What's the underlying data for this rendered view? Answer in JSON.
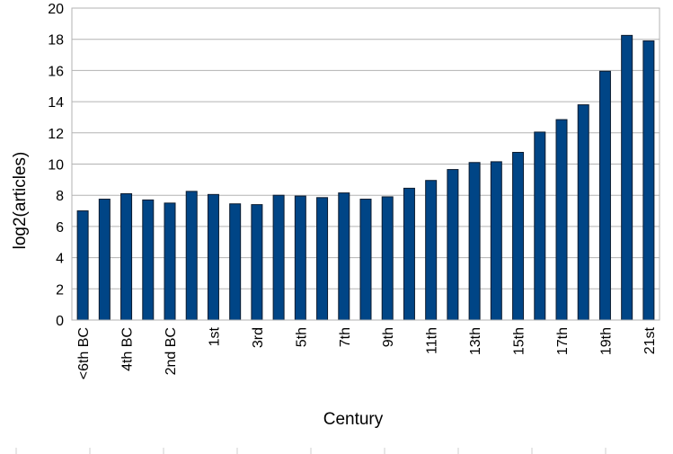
{
  "chart_data": {
    "type": "bar",
    "title": "",
    "xlabel": "Century",
    "ylabel": "log2(articles)",
    "ylim": [
      0,
      20
    ],
    "y_ticks": [
      0,
      2,
      4,
      6,
      8,
      10,
      12,
      14,
      16,
      18,
      20
    ],
    "grid": true,
    "legend": "none",
    "bar_color": "#004586",
    "categories": [
      "<6th BC",
      "5th BC",
      "4th BC",
      "3rd BC",
      "2nd BC",
      "1st BC",
      "1st",
      "2nd",
      "3rd",
      "4th",
      "5th",
      "6th",
      "7th",
      "8th",
      "9th",
      "10th",
      "11th",
      "12th",
      "13th",
      "14th",
      "15th",
      "16th",
      "17th",
      "18th",
      "19th",
      "20th",
      "21st"
    ],
    "values": [
      7.0,
      7.75,
      8.1,
      7.7,
      7.5,
      8.25,
      8.05,
      7.45,
      7.4,
      8.0,
      7.95,
      7.85,
      8.15,
      7.75,
      7.9,
      8.45,
      8.95,
      9.65,
      10.1,
      10.15,
      10.75,
      12.05,
      12.85,
      13.8,
      15.95,
      18.25,
      17.9
    ],
    "shown_tick_labels": [
      "<6th BC",
      "4th BC",
      "2nd BC",
      "1st",
      "3rd",
      "5th",
      "7th",
      "9th",
      "11th",
      "13th",
      "15th",
      "17th",
      "19th",
      "21st"
    ]
  }
}
